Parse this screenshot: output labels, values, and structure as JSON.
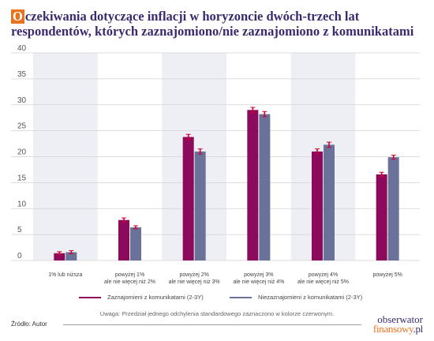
{
  "title_first_letter": "O",
  "title_rest": "czekiwania dotyczące inflacji w horyzoncie dwóch-trzech lat respondentów, których zaznajomiono/nie zaznajomiono z komunikatami",
  "colors": {
    "series1": "#8b0a5c",
    "series2": "#6b7299",
    "error_bar": "#d1002f",
    "band": "#eeeff4",
    "gridline": "#d2d2d2",
    "title": "#3b2a6e",
    "accent": "#e8731c"
  },
  "chart_data": {
    "type": "bar",
    "categories": [
      [
        "1% lub niższa"
      ],
      [
        "powyżej 1%",
        "ale nie więcej niż 2%"
      ],
      [
        "powyżej 2%",
        "ale nie więcej niż 3%"
      ],
      [
        "powyżej 3%",
        "ale nie więcej niż 4%"
      ],
      [
        "powyżej 4%",
        "ale nie więcej niż 5%"
      ],
      [
        "powyżej 5%"
      ]
    ],
    "series": [
      {
        "name": "Zaznajomieni z komunikatami (2-3Y)",
        "values": [
          1.4,
          7.8,
          23.8,
          29.0,
          21.0,
          16.6
        ],
        "errors": [
          0.3,
          0.4,
          0.5,
          0.5,
          0.5,
          0.4
        ]
      },
      {
        "name": "Niezaznajomieni z komunikatami (2-3Y)",
        "values": [
          1.6,
          6.4,
          21.0,
          28.2,
          22.3,
          19.9
        ],
        "errors": [
          0.3,
          0.3,
          0.5,
          0.5,
          0.5,
          0.4
        ]
      }
    ],
    "ylim": [
      0,
      40
    ],
    "yticks": [
      0,
      5,
      10,
      15,
      20,
      25,
      30,
      35,
      40
    ],
    "grid": true,
    "legend_position": "bottom"
  },
  "note": "Uwaga: Przedział jednego odchylenia standardowego zaznaczono w kolorze czerwonym.",
  "source": "Źródło: Autor",
  "logo": {
    "line1": "obserwator",
    "line2a": "finansowy",
    "line2b": ".pl"
  }
}
